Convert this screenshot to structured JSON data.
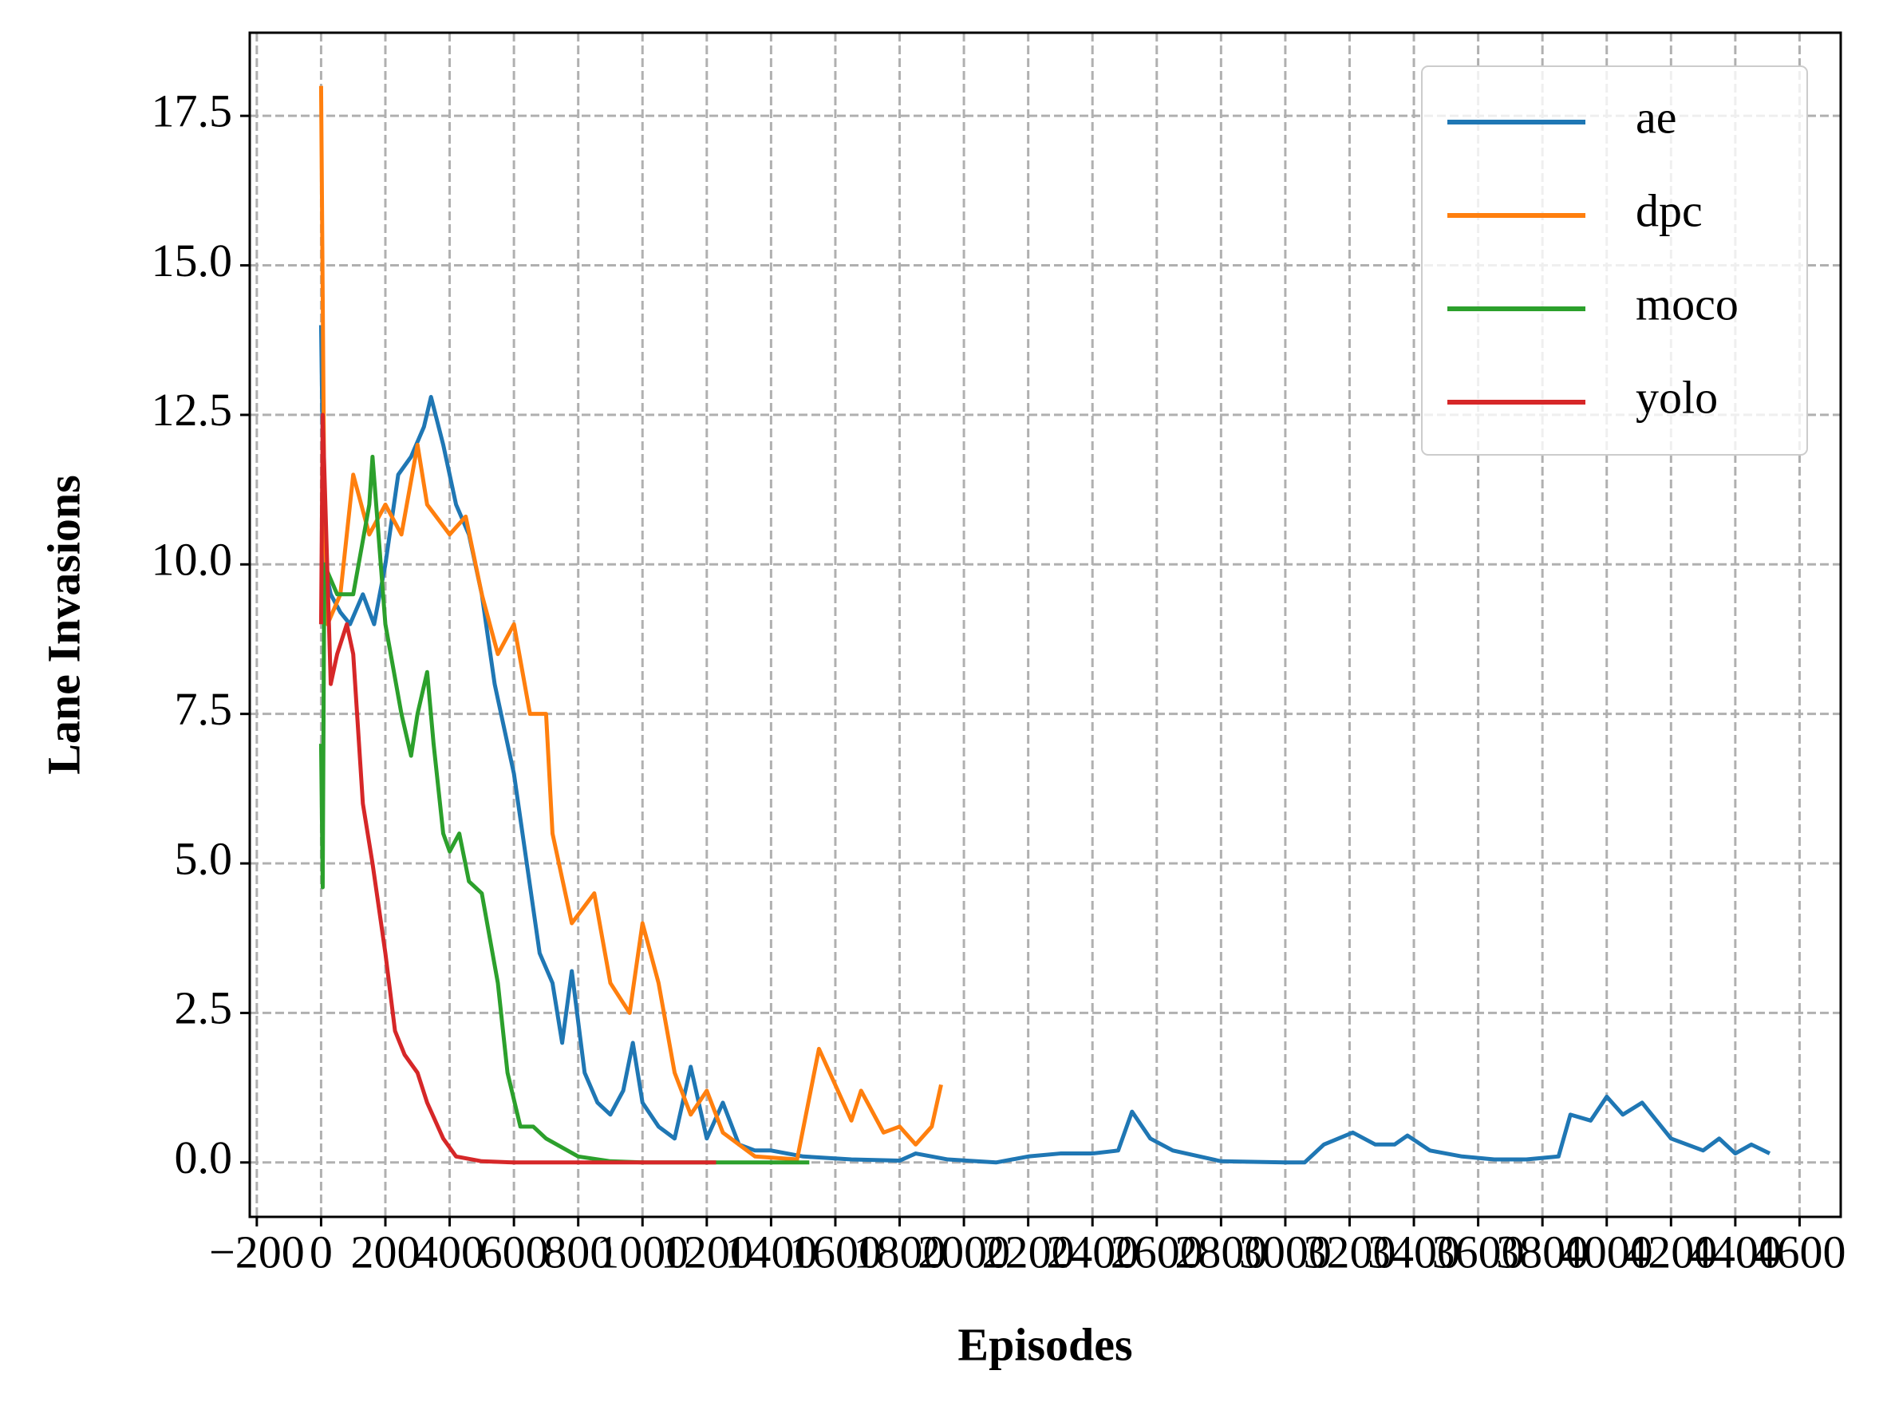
{
  "chart_data": {
    "type": "line",
    "x_label": "Episodes",
    "y_label": "Lane Invasions",
    "xlim": [
      -222,
      4728
    ],
    "ylim": [
      -0.91,
      18.89
    ],
    "xticks": [
      {
        "value": -200,
        "label": "−200"
      },
      0,
      200,
      400,
      600,
      800,
      1000,
      1200,
      1400,
      1600,
      1800,
      2000,
      2200,
      2400,
      2600,
      2800,
      3000,
      3200,
      3400,
      3600,
      3800,
      4000,
      4200,
      4400,
      4600
    ],
    "yticks": [
      {
        "value": 0,
        "label": "0.0"
      },
      2.5,
      {
        "value": 5,
        "label": "5.0"
      },
      7.5,
      {
        "value": 10,
        "label": "10.0"
      },
      12.5,
      {
        "value": 15,
        "label": "15.0"
      },
      17.5
    ],
    "grid": true,
    "legend": "upper right",
    "series": [
      {
        "name": "ae",
        "color": "#1f77b4",
        "x": [
          0,
          10,
          30,
          60,
          90,
          130,
          165,
          200,
          240,
          280,
          320,
          342,
          380,
          420,
          460,
          500,
          540,
          580,
          600,
          640,
          680,
          720,
          750,
          780,
          820,
          860,
          900,
          940,
          970,
          1000,
          1050,
          1100,
          1150,
          1200,
          1250,
          1300,
          1350,
          1400,
          1500,
          1650,
          1800,
          1850,
          1950,
          2100,
          2200,
          2300,
          2400,
          2480,
          2523,
          2580,
          2650,
          2800,
          3000,
          3060,
          3120,
          3210,
          3280,
          3340,
          3380,
          3450,
          3550,
          3650,
          3750,
          3850,
          3887,
          3950,
          4000,
          4050,
          4110,
          4200,
          4300,
          4350,
          4400,
          4450,
          4507
        ],
        "values": [
          14,
          10,
          9.5,
          9.2,
          9.0,
          9.5,
          9.0,
          10.0,
          11.5,
          11.8,
          12.3,
          12.8,
          12.0,
          11.0,
          10.5,
          9.5,
          8.0,
          7.0,
          6.5,
          5.0,
          3.5,
          3.0,
          2.0,
          3.2,
          1.5,
          1.0,
          0.8,
          1.2,
          2.0,
          1.0,
          0.6,
          0.4,
          1.6,
          0.4,
          1.0,
          0.3,
          0.2,
          0.2,
          0.1,
          0.05,
          0.03,
          0.15,
          0.05,
          0.0,
          0.1,
          0.15,
          0.15,
          0.2,
          0.85,
          0.4,
          0.2,
          0.02,
          0.0,
          0.0,
          0.3,
          0.5,
          0.3,
          0.3,
          0.45,
          0.2,
          0.1,
          0.05,
          0.05,
          0.1,
          0.8,
          0.7,
          1.1,
          0.8,
          1.0,
          0.4,
          0.2,
          0.4,
          0.15,
          0.3,
          0.15
        ]
      },
      {
        "name": "dpc",
        "color": "#ff7f0e",
        "x": [
          0,
          10,
          20,
          60,
          100,
          150,
          200,
          250,
          300,
          330,
          400,
          450,
          500,
          550,
          600,
          650,
          700,
          720,
          780,
          850,
          900,
          960,
          1000,
          1050,
          1100,
          1150,
          1200,
          1250,
          1350,
          1481,
          1549,
          1650,
          1680,
          1750,
          1800,
          1850,
          1900,
          1929
        ],
        "values": [
          18,
          11,
          9,
          9.5,
          11.5,
          10.5,
          11,
          10.5,
          12,
          11,
          10.5,
          10.8,
          9.5,
          8.5,
          9,
          7.5,
          7.5,
          5.5,
          4,
          4.5,
          3,
          2.5,
          4,
          3,
          1.5,
          0.8,
          1.2,
          0.5,
          0.1,
          0.05,
          1.9,
          0.7,
          1.2,
          0.5,
          0.6,
          0.3,
          0.6,
          1.3
        ]
      },
      {
        "name": "moco",
        "color": "#2ca02c",
        "x": [
          0,
          5,
          10,
          50,
          100,
          150,
          160,
          200,
          250,
          280,
          300,
          330,
          350,
          380,
          400,
          430,
          460,
          500,
          550,
          580,
          620,
          660,
          700,
          800,
          900,
          1000,
          1519
        ],
        "values": [
          7,
          4.6,
          10,
          9.5,
          9.5,
          11,
          11.8,
          9,
          7.5,
          6.8,
          7.5,
          8.2,
          7,
          5.5,
          5.2,
          5.5,
          4.7,
          4.5,
          3,
          1.5,
          0.6,
          0.6,
          0.4,
          0.1,
          0.02,
          0,
          0
        ]
      },
      {
        "name": "yolo",
        "color": "#d62728",
        "x": [
          0,
          5,
          30,
          50,
          80,
          100,
          130,
          160,
          200,
          230,
          260,
          300,
          330,
          380,
          420,
          500,
          600,
          1229
        ],
        "values": [
          9,
          12.5,
          8,
          8.5,
          9,
          8.5,
          6,
          5,
          3.5,
          2.2,
          1.8,
          1.5,
          1.0,
          0.4,
          0.1,
          0.02,
          0,
          0
        ]
      }
    ]
  }
}
